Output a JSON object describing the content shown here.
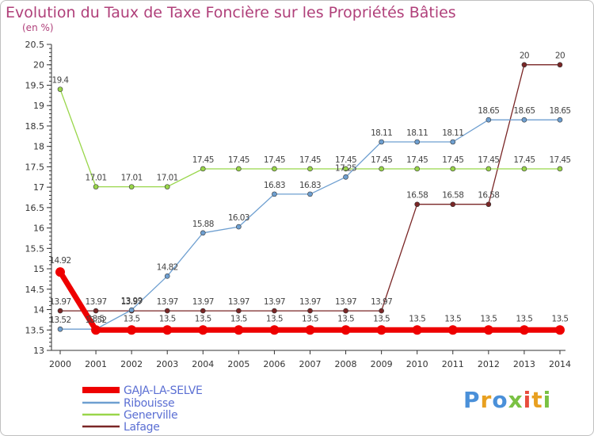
{
  "chart_data": {
    "type": "line",
    "title": "Evolution du Taux de Taxe Foncière sur les Propriétés Bâties",
    "subtitle": "(en %)",
    "xlabel": "",
    "ylabel": "(en %)",
    "ylim": [
      13,
      20.5
    ],
    "yticks": [
      "13",
      "13.5",
      "14",
      "14.5",
      "15",
      "15.5",
      "16",
      "16.5",
      "17",
      "17.5",
      "18",
      "18.5",
      "19",
      "19.5",
      "20",
      "20.5"
    ],
    "x": [
      "2000",
      "2001",
      "2002",
      "2003",
      "2004",
      "2005",
      "2006",
      "2007",
      "2008",
      "2009",
      "2010",
      "2011",
      "2012",
      "2013",
      "2014"
    ],
    "series": [
      {
        "name": "Lafage",
        "color": "#7a2626",
        "values": [
          13.97,
          13.97,
          13.97,
          13.97,
          13.97,
          13.97,
          13.97,
          13.97,
          13.97,
          13.97,
          16.58,
          16.58,
          16.58,
          20,
          20
        ],
        "labels": [
          "13.97",
          "13.97",
          "13.97",
          "13.97",
          "13.97",
          "13.97",
          "13.97",
          "13.97",
          "13.97",
          "13.97",
          "16.58",
          "16.58",
          "16.58",
          "20",
          "20"
        ]
      },
      {
        "name": "Generville",
        "color": "#99d64a",
        "values": [
          19.4,
          17.01,
          17.01,
          17.01,
          17.45,
          17.45,
          17.45,
          17.45,
          17.45,
          17.45,
          17.45,
          17.45,
          17.45,
          17.45,
          17.45
        ],
        "labels": [
          "19.4",
          "17.01",
          "17.01",
          "17.01",
          "17.45",
          "17.45",
          "17.45",
          "17.45",
          "17.45",
          "17.45",
          "17.45",
          "17.45",
          "17.45",
          "17.45",
          "17.45"
        ]
      },
      {
        "name": "Ribouisse",
        "color": "#6e9fd0",
        "values": [
          13.52,
          13.52,
          13.99,
          14.82,
          15.88,
          16.03,
          16.83,
          16.83,
          17.25,
          18.11,
          18.11,
          18.11,
          18.65,
          18.65,
          18.65
        ],
        "labels": [
          "13.52",
          "13.52",
          "13.99",
          "14.82",
          "15.88",
          "16.03",
          "16.83",
          "16.83",
          "17.25",
          "18.11",
          "18.11",
          "18.11",
          "18.65",
          "18.65",
          "18.65"
        ]
      },
      {
        "name": "GAJA-LA-SELVE",
        "color": "#ee0000",
        "values": [
          14.92,
          13.5,
          13.5,
          13.5,
          13.5,
          13.5,
          13.5,
          13.5,
          13.5,
          13.5,
          13.5,
          13.5,
          13.5,
          13.5,
          13.5
        ],
        "labels": [
          "14.92",
          "13.5",
          "13.5",
          "13.5",
          "13.5",
          "13.5",
          "13.5",
          "13.5",
          "13.5",
          "13.5",
          "13.5",
          "13.5",
          "13.5",
          "13.5",
          "13.5"
        ]
      }
    ],
    "legend": {
      "placement": "bottom-left",
      "entries": [
        "GAJA-LA-SELVE",
        "Ribouisse",
        "Generville",
        "Lafage"
      ]
    },
    "grid": false
  },
  "logo": {
    "letters": [
      "P",
      "r",
      "o",
      "x",
      "i",
      "t",
      "i"
    ],
    "colors": [
      "#4a90d9",
      "#e8a020",
      "#4a90d9",
      "#7ac143",
      "#e84c3d",
      "#e8a020",
      "#7ac143"
    ]
  }
}
